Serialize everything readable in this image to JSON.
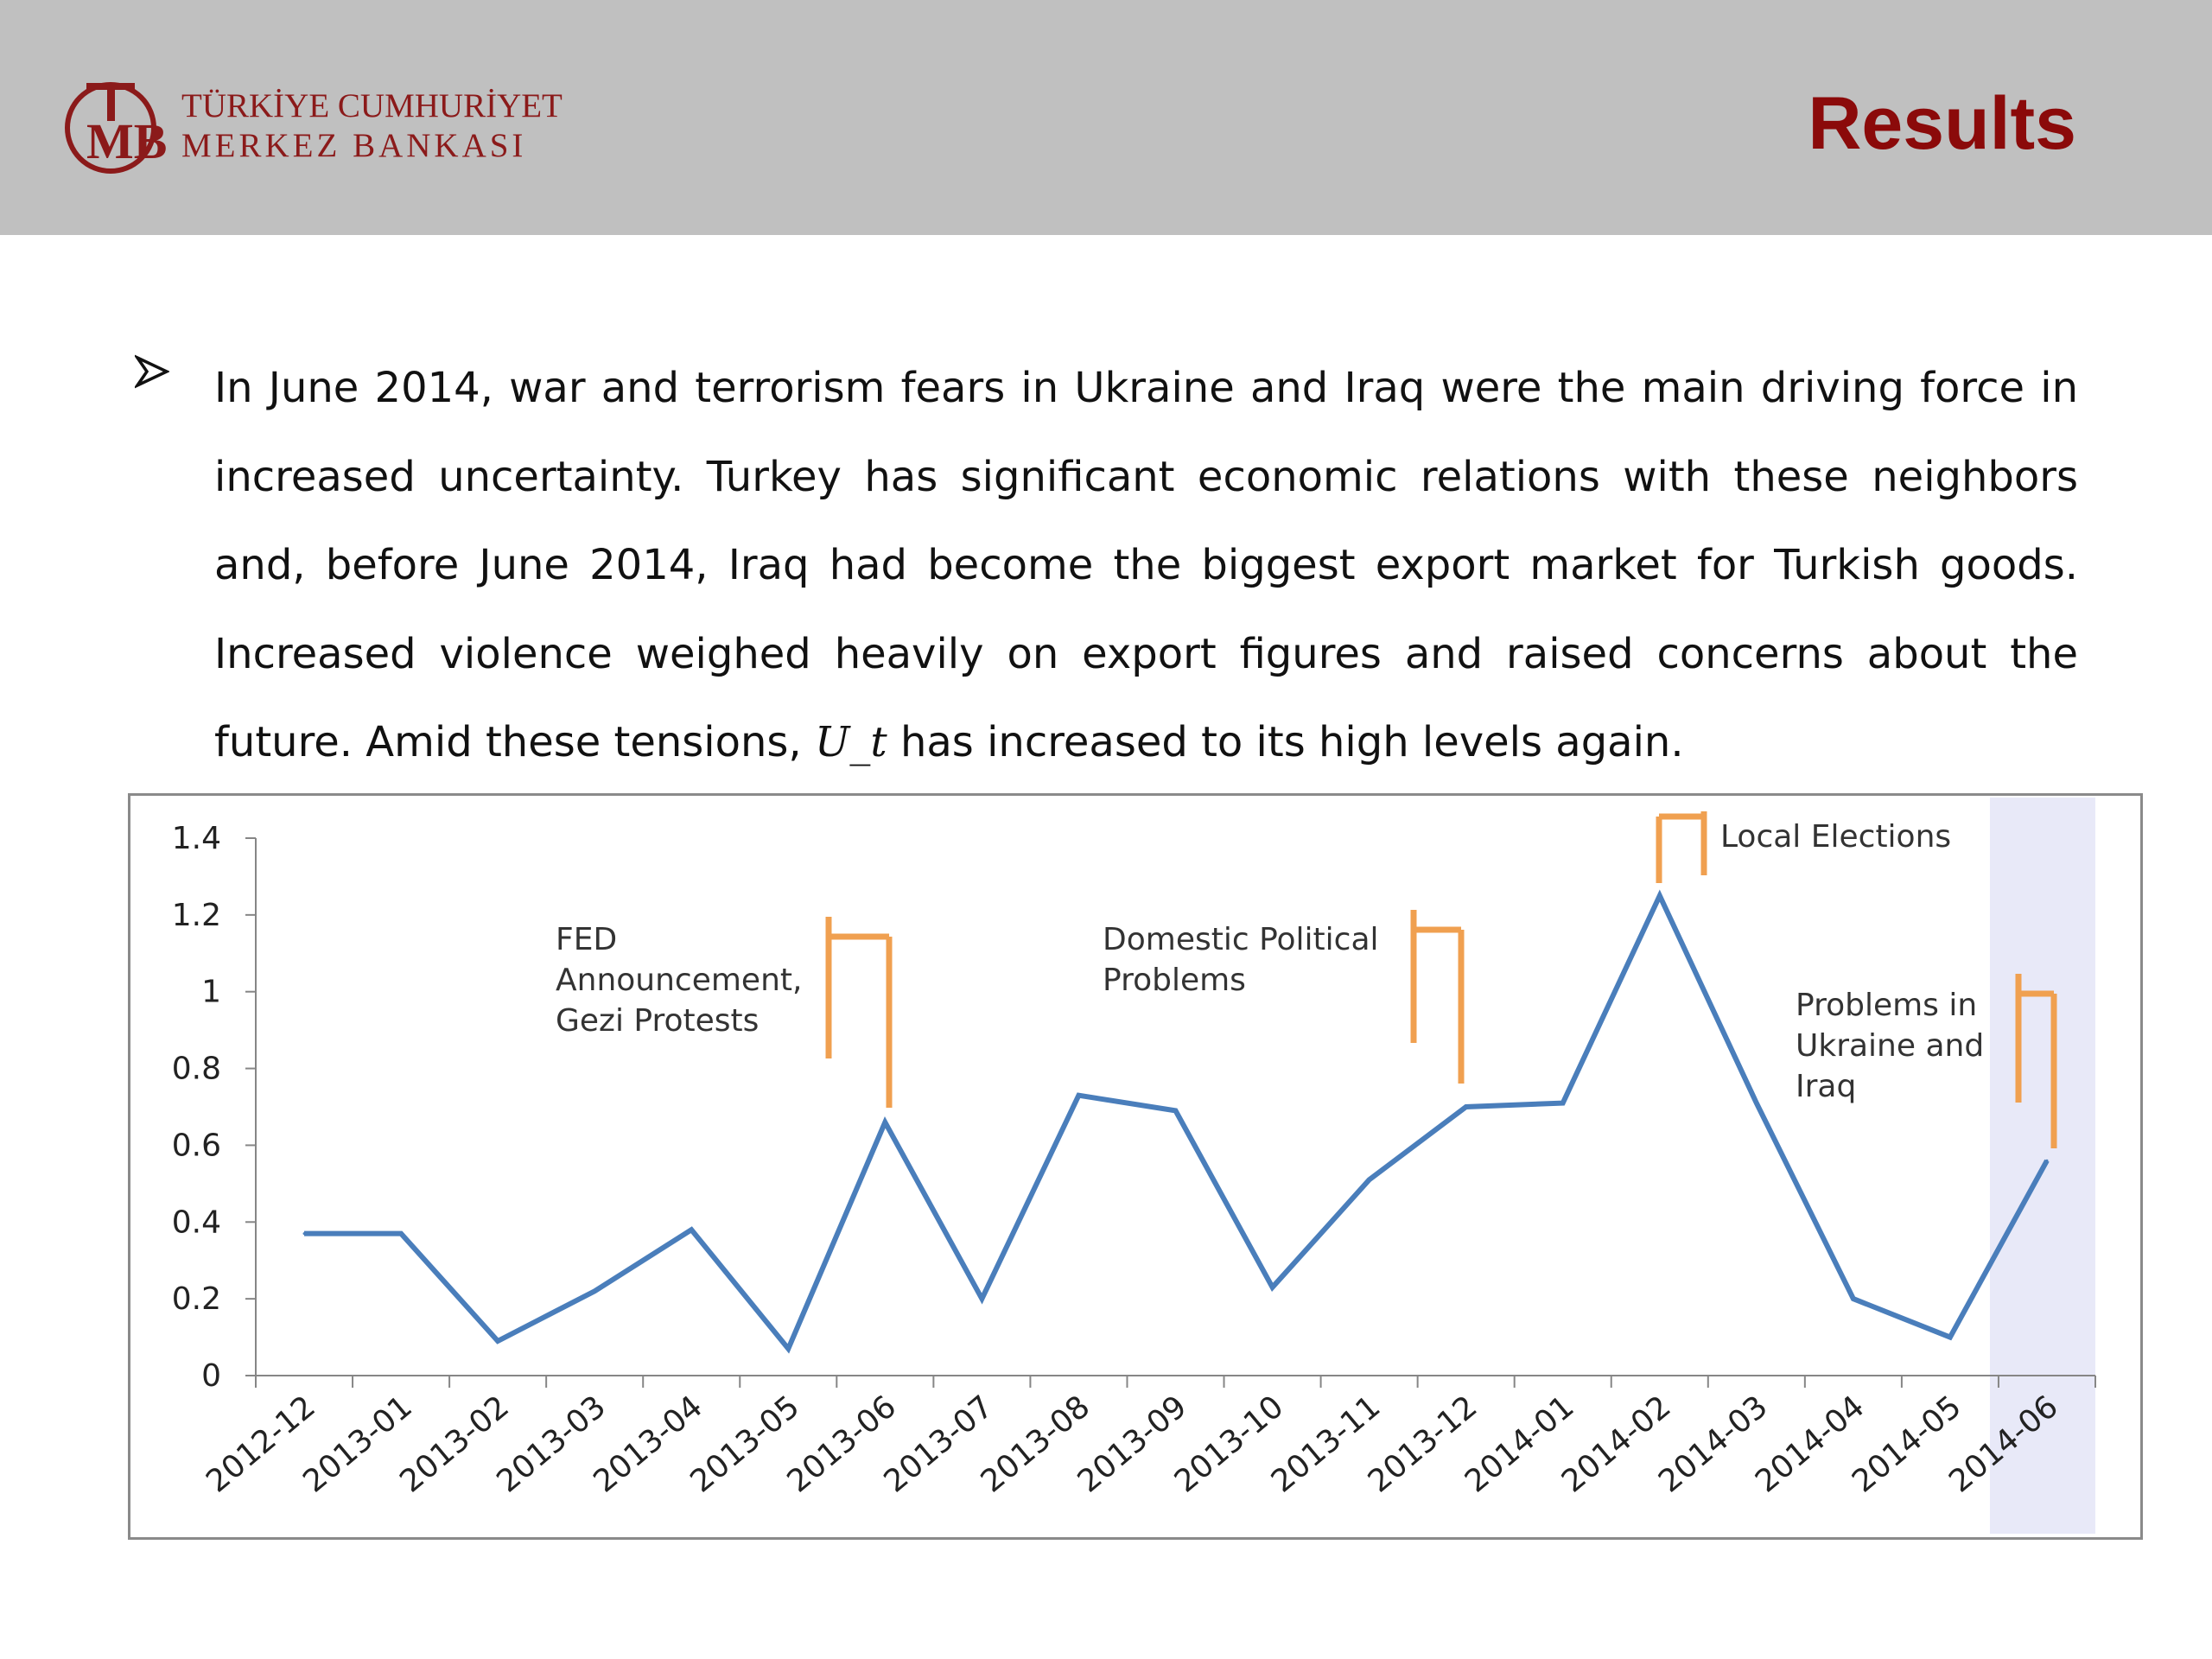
{
  "header": {
    "logo_line1": "TÜRKİYE CUMHURİYET",
    "logo_line2": "MERKEZ BANKASI",
    "title": "Results",
    "brand_color": "#8b0a0a",
    "background": "#c0c0c0"
  },
  "body": {
    "bullet_icon": "arrowhead-bullet-icon",
    "para_part1": "In June 2014, war and terrorism fears in Ukraine and Iraq were the main driving force in increased uncertainty. Turkey has significant economic relations with these neighbors and, before June 2014, Iraq had become the biggest export market for Turkish goods. Increased violence weighed heavily on export figures and raised concerns about the future. Amid these tensions, ",
    "para_math": "U_t",
    "para_part2": " has increased to its high levels again."
  },
  "chart_data": {
    "type": "line",
    "categories": [
      "2012-12",
      "2013-01",
      "2013-02",
      "2013-03",
      "2013-04",
      "2013-05",
      "2013-06",
      "2013-07",
      "2013-08",
      "2013-09",
      "2013-10",
      "2013-11",
      "2013-12",
      "2014-01",
      "2014-02",
      "2014-03",
      "2014-04",
      "2014-05",
      "2014-06"
    ],
    "series": [
      {
        "values": [
          0.37,
          0.37,
          0.09,
          0.22,
          0.38,
          0.07,
          0.66,
          0.2,
          0.73,
          0.69,
          0.23,
          0.51,
          0.7,
          0.71,
          1.25,
          0.71,
          0.2,
          0.1,
          0.56
        ],
        "color": "#4a7ebb"
      }
    ],
    "ylim": [
      0,
      1.4
    ],
    "yticks": [
      "0",
      "0.2",
      "0.4",
      "0.6",
      "0.8",
      "1",
      "1.2",
      "1.4"
    ],
    "highlight_category": "2014-06",
    "highlight_color": "#e8e9f8",
    "annotation_color": "#f0a050",
    "annotations": [
      {
        "lines": [
          "FED",
          "Announcement,",
          "Gezi Protests"
        ],
        "category": "2013-06"
      },
      {
        "lines": [
          "Domestic Political",
          "Problems"
        ],
        "category": "2013-12"
      },
      {
        "lines": [
          "Local Elections"
        ],
        "category": "2014-02"
      },
      {
        "lines": [
          "Problems in",
          "Ukraine and",
          "Iraq"
        ],
        "category": "2014-06"
      }
    ]
  }
}
